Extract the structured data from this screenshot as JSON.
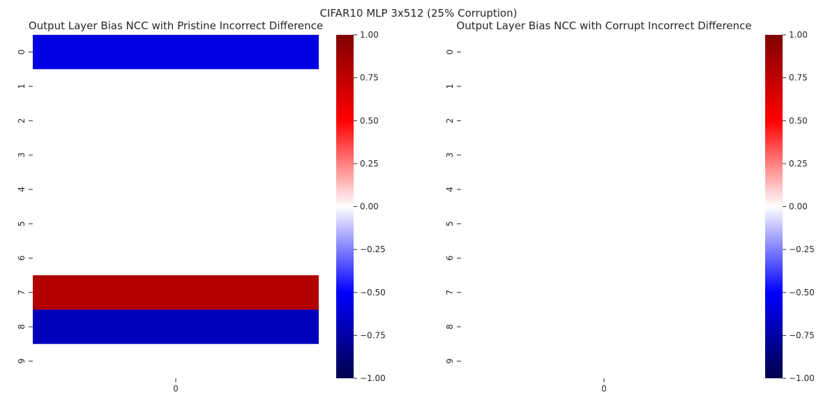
{
  "figure": {
    "suptitle": "CIFAR10 MLP 3x512 (25% Corruption)"
  },
  "chart_data": [
    {
      "type": "heatmap",
      "title": "Output Layer Bias NCC with Pristine Incorrect Difference",
      "xlabel": "",
      "ylabel": "",
      "x_categories": [
        "0"
      ],
      "y_categories": [
        "0",
        "1",
        "2",
        "3",
        "4",
        "5",
        "6",
        "7",
        "8",
        "9"
      ],
      "values": [
        [
          -0.58
        ],
        [
          0.0
        ],
        [
          0.0
        ],
        [
          0.0
        ],
        [
          0.0
        ],
        [
          0.0
        ],
        [
          0.0
        ],
        [
          0.8
        ],
        [
          -0.69
        ],
        [
          0.0
        ]
      ],
      "colormap": "seismic",
      "colorbar": {
        "vmin": -1.0,
        "vmax": 1.0,
        "ticks": [
          "1.00",
          "0.75",
          "0.50",
          "0.25",
          "0.00",
          "−0.25",
          "−0.50",
          "−0.75",
          "−1.00"
        ]
      },
      "grid": false
    },
    {
      "type": "heatmap",
      "title": "Output Layer Bias NCC with Corrupt Incorrect Difference",
      "xlabel": "",
      "ylabel": "",
      "x_categories": [
        "0"
      ],
      "y_categories": [
        "0",
        "1",
        "2",
        "3",
        "4",
        "5",
        "6",
        "7",
        "8",
        "9"
      ],
      "values": [
        [
          0.0
        ],
        [
          0.0
        ],
        [
          0.0
        ],
        [
          0.0
        ],
        [
          0.0
        ],
        [
          0.0
        ],
        [
          0.0
        ],
        [
          0.0
        ],
        [
          0.0
        ],
        [
          0.0
        ]
      ],
      "colormap": "seismic",
      "colorbar": {
        "vmin": -1.0,
        "vmax": 1.0,
        "ticks": [
          "1.00",
          "0.75",
          "0.50",
          "0.25",
          "0.00",
          "−0.25",
          "−0.50",
          "−0.75",
          "−1.00"
        ]
      },
      "grid": false
    }
  ]
}
